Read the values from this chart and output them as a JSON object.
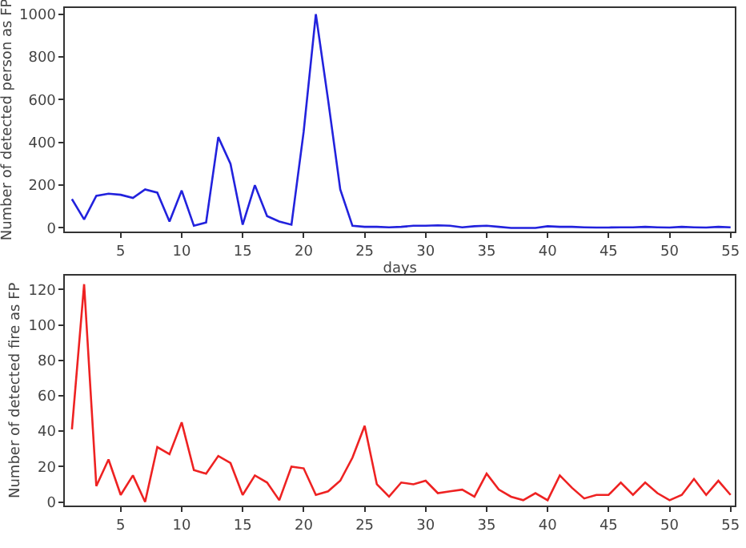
{
  "chart_data": [
    {
      "type": "line",
      "xlabel": "days",
      "ylabel": "Number of detected person as FP",
      "xlim": [
        0.45,
        55.35
      ],
      "ylim": [
        -18,
        1030
      ],
      "xticks": [
        5,
        10,
        15,
        20,
        25,
        30,
        35,
        40,
        45,
        50,
        55
      ],
      "yticks": [
        0,
        200,
        400,
        600,
        800,
        1000
      ],
      "x": [
        1,
        2,
        3,
        4,
        5,
        6,
        7,
        8,
        9,
        10,
        11,
        12,
        13,
        14,
        15,
        16,
        17,
        18,
        19,
        20,
        21,
        22,
        23,
        24,
        25,
        26,
        27,
        28,
        29,
        30,
        31,
        32,
        33,
        34,
        35,
        36,
        37,
        38,
        39,
        40,
        41,
        42,
        43,
        44,
        45,
        46,
        47,
        48,
        49,
        50,
        51,
        52,
        53,
        54,
        55
      ],
      "series": [
        {
          "color": "#2222dd",
          "values": [
            135,
            40,
            150,
            160,
            155,
            140,
            180,
            165,
            30,
            175,
            10,
            25,
            425,
            300,
            15,
            200,
            55,
            30,
            15,
            450,
            1000,
            600,
            180,
            10,
            5,
            5,
            3,
            5,
            10,
            10,
            12,
            10,
            3,
            8,
            10,
            5,
            0,
            0,
            0,
            8,
            5,
            5,
            3,
            2,
            2,
            3,
            3,
            5,
            3,
            2,
            5,
            3,
            2,
            5,
            3
          ]
        }
      ]
    },
    {
      "type": "line",
      "ylabel": "Number of detected fire as FP",
      "xlim": [
        0.45,
        55.35
      ],
      "ylim": [
        -2,
        128
      ],
      "xticks": [
        5,
        10,
        15,
        20,
        25,
        30,
        35,
        40,
        45,
        50,
        55
      ],
      "yticks": [
        0,
        20,
        40,
        60,
        80,
        100,
        120
      ],
      "x": [
        1,
        2,
        3,
        4,
        5,
        6,
        7,
        8,
        9,
        10,
        11,
        12,
        13,
        14,
        15,
        16,
        17,
        18,
        19,
        20,
        21,
        22,
        23,
        24,
        25,
        26,
        27,
        28,
        29,
        30,
        31,
        32,
        33,
        34,
        35,
        36,
        37,
        38,
        39,
        40,
        41,
        42,
        43,
        44,
        45,
        46,
        47,
        48,
        49,
        50,
        51,
        52,
        53,
        54,
        55
      ],
      "series": [
        {
          "color": "#ee2222",
          "values": [
            41,
            123,
            9,
            24,
            4,
            15,
            0,
            31,
            27,
            45,
            18,
            16,
            26,
            22,
            4,
            15,
            11,
            1,
            20,
            19,
            4,
            6,
            12,
            25,
            43,
            10,
            3,
            11,
            10,
            12,
            5,
            6,
            7,
            3,
            16,
            7,
            3,
            1,
            5,
            1,
            15,
            8,
            2,
            4,
            4,
            11,
            4,
            11,
            5,
            1,
            4,
            13,
            4,
            12,
            4
          ]
        }
      ]
    }
  ]
}
